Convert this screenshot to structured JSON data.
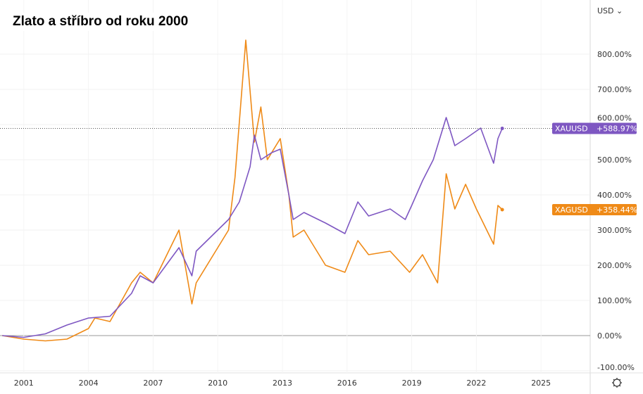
{
  "title": "Zlato a stříbro od roku 2000",
  "currency": "USD ⌄",
  "settings_icon": "gear-icon",
  "chart_data": {
    "type": "line",
    "title": "Zlato a stříbro od roku 2000",
    "ylim": [
      -100,
      900
    ],
    "xlim": [
      2000,
      2026.5
    ],
    "y_ticks": [
      "-100.00%",
      "0.00%",
      "100.00%",
      "200.00%",
      "300.00%",
      "400.00%",
      "500.00%",
      "600.00%",
      "700.00%",
      "800.00%"
    ],
    "x_ticks": [
      "2001",
      "2004",
      "2007",
      "2010",
      "2013",
      "2016",
      "2019",
      "2022",
      "2025"
    ],
    "grid": true,
    "series": [
      {
        "name": "XAUUSD",
        "color": "#7e57c2",
        "last_label": "+588.97%",
        "x": [
          2000,
          2001,
          2002,
          2003,
          2004,
          2005,
          2006,
          2006.4,
          2007,
          2008.2,
          2008.8,
          2009,
          2010,
          2010.5,
          2011,
          2011.5,
          2011.7,
          2012,
          2012.5,
          2012.9,
          2013.3,
          2013.5,
          2014,
          2015,
          2015.9,
          2016.5,
          2017,
          2018,
          2018.7,
          2019,
          2019.5,
          2020,
          2020.6,
          2021,
          2021.5,
          2022.2,
          2022.8,
          2023,
          2023.2
        ],
        "y": [
          0,
          -5,
          5,
          30,
          50,
          55,
          120,
          170,
          150,
          250,
          170,
          240,
          300,
          330,
          380,
          480,
          570,
          500,
          520,
          530,
          400,
          330,
          350,
          320,
          290,
          380,
          340,
          360,
          330,
          370,
          440,
          500,
          620,
          540,
          560,
          590,
          490,
          560,
          589
        ]
      },
      {
        "name": "XAGUSD",
        "color": "#ef8a17",
        "last_label": "+358.44%",
        "x": [
          2000,
          2001,
          2002,
          2003,
          2004,
          2004.3,
          2005,
          2006,
          2006.4,
          2007,
          2008.2,
          2008.8,
          2009,
          2010,
          2010.5,
          2010.8,
          2011.3,
          2011.7,
          2012,
          2012.3,
          2012.9,
          2013.3,
          2013.5,
          2014,
          2015,
          2015.9,
          2016.5,
          2017,
          2018,
          2018.9,
          2019.5,
          2020.2,
          2020.6,
          2021,
          2021.5,
          2022,
          2022.8,
          2023,
          2023.2
        ],
        "y": [
          0,
          -10,
          -15,
          -10,
          20,
          50,
          40,
          150,
          180,
          150,
          300,
          90,
          150,
          250,
          300,
          450,
          840,
          550,
          650,
          500,
          560,
          400,
          280,
          300,
          200,
          180,
          270,
          230,
          240,
          180,
          230,
          150,
          460,
          360,
          430,
          360,
          260,
          370,
          358
        ]
      }
    ]
  }
}
